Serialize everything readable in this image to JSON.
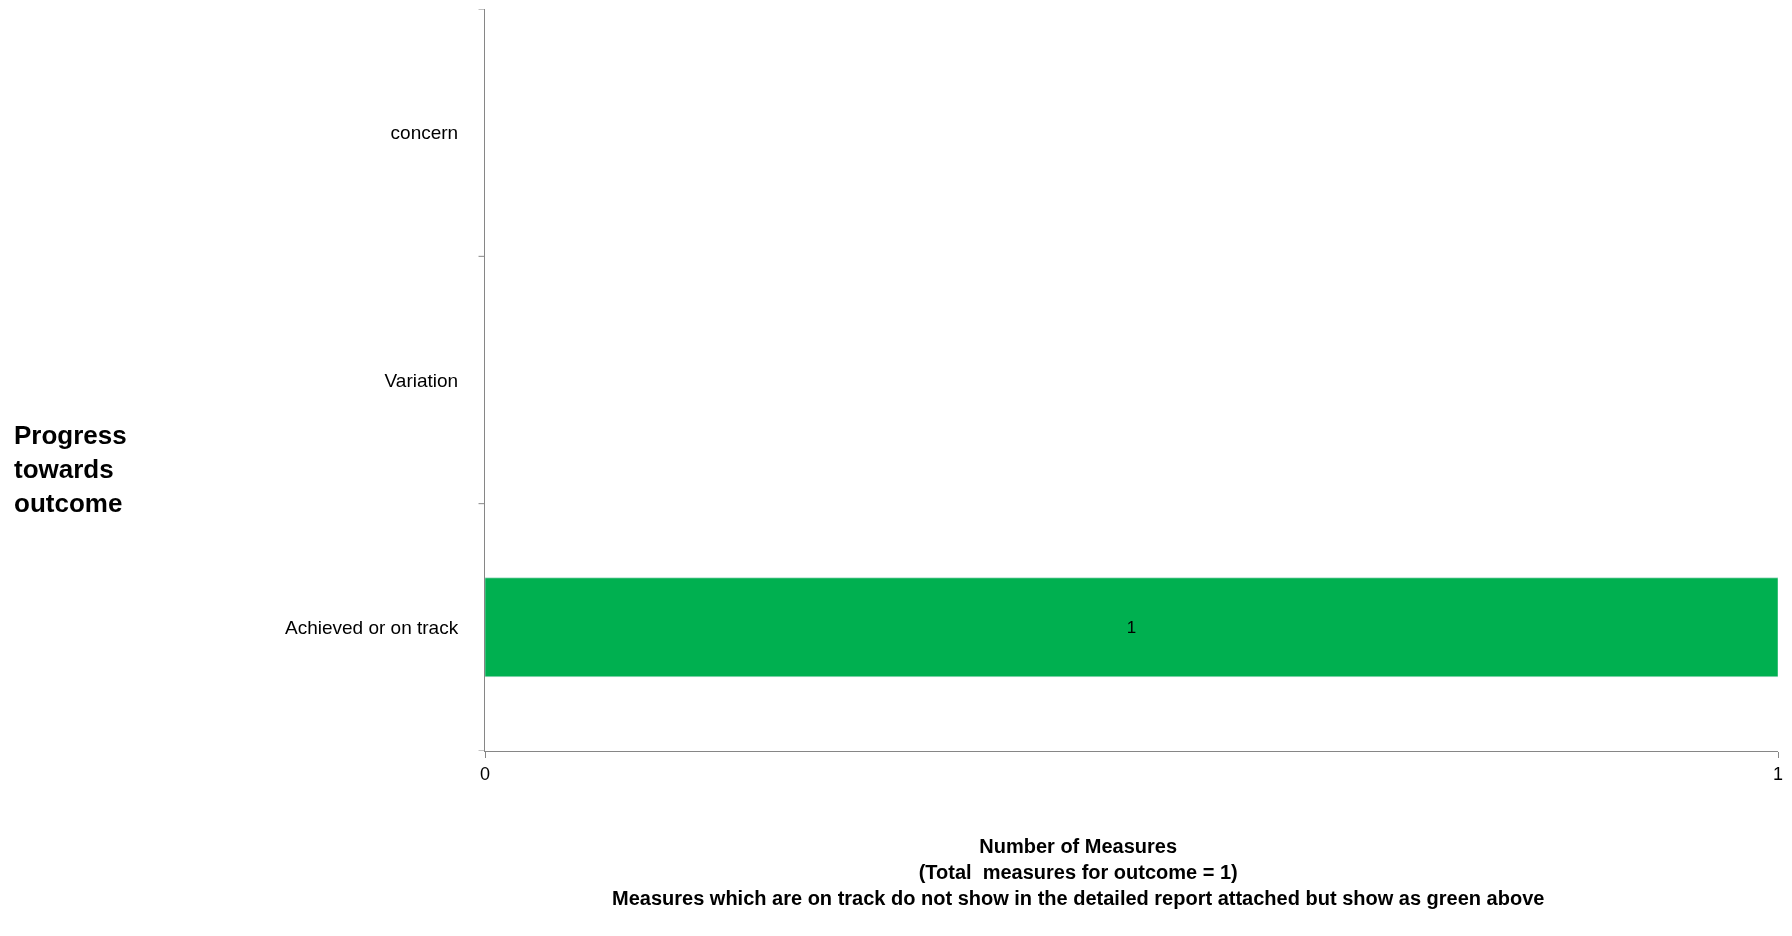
{
  "chart_data": {
    "type": "bar",
    "orientation": "horizontal",
    "categories": [
      "concern",
      "Variation",
      "Achieved or on track"
    ],
    "values": [
      null,
      null,
      1
    ],
    "value_labels": [
      null,
      null,
      "1"
    ],
    "color": "#00b050",
    "xlim": [
      0,
      1
    ],
    "xticks": [
      0,
      1
    ],
    "xlabel": "Number of Measures\n(Total  measures for outcome = 1)\nMeasures which are on track do not show in the detailed report attached but show as green above",
    "annotations": [
      "Progress towards outcome"
    ]
  }
}
